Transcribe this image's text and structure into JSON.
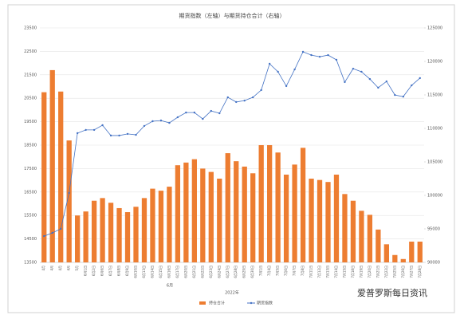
{
  "chart_data": {
    "type": "bar_line",
    "title": "期货指数（左轴）与期货持仓合计（右轴）",
    "x_annotation": "2022年",
    "group_label": "6月",
    "watermark": "爱普罗斯每日资讯",
    "categories": [
      "4月",
      "4月",
      "4月",
      "4月",
      "5月",
      "6月1日",
      "6月2日",
      "6月6日",
      "6月7日",
      "6月8日",
      "6月9日",
      "6月10日",
      "6月13日",
      "6月14日",
      "6月15日",
      "6月16日",
      "6月17日",
      "6月20日",
      "6月21日",
      "6月22日",
      "6月23日",
      "6月24日",
      "6月27日",
      "6月28日",
      "6月29日",
      "6月30日",
      "7月1日",
      "7月4日",
      "7月5日",
      "7月6日",
      "7月7日",
      "7月8日",
      "7月11日",
      "7月12日",
      "7月13日",
      "7月14日",
      "7月15日",
      "7月18日",
      "7月19日",
      "7月20日",
      "7月21日",
      "7月22日",
      "7月25日",
      "7月26日",
      "7月27日",
      "7月28日"
    ],
    "series": [
      {
        "name": "持仓合计",
        "kind": "bar",
        "axis": "y2",
        "color": "#ed7d31",
        "values": [
          115400,
          118700,
          115500,
          108200,
          97000,
          97600,
          99200,
          99600,
          98900,
          98100,
          97500,
          98300,
          99600,
          101000,
          100700,
          101300,
          104500,
          104900,
          105400,
          104000,
          103500,
          102500,
          106300,
          105100,
          104300,
          103300,
          107500,
          107500,
          106400,
          103100,
          104600,
          107100,
          102500,
          102300,
          102000,
          103100,
          100200,
          99200,
          97700,
          97100,
          94900,
          92700,
          91100,
          90500,
          93100,
          93100
        ]
      },
      {
        "name": "期货指数",
        "kind": "line",
        "color": "#4472c4",
        "values": [
          14620,
          14760,
          14930,
          16460,
          19010,
          19150,
          19150,
          19350,
          18910,
          18910,
          18980,
          18940,
          19320,
          19520,
          19550,
          19450,
          19690,
          19890,
          19890,
          19620,
          19960,
          19860,
          20540,
          20340,
          20400,
          20540,
          20850,
          21970,
          21630,
          21020,
          21730,
          22480,
          22340,
          22270,
          22340,
          22140,
          21190,
          21760,
          21630,
          21320,
          20950,
          21220,
          20640,
          20570,
          21050,
          21360
        ]
      }
    ],
    "ylim": [
      13500,
      23500
    ],
    "yticks": [
      13500,
      14500,
      15500,
      16500,
      17500,
      18500,
      19500,
      20500,
      21500,
      22500,
      23500
    ],
    "y2lim": [
      90000,
      125000
    ],
    "y2ticks": [
      90000,
      95000,
      100000,
      105000,
      110000,
      115000,
      120000,
      125000
    ],
    "grid": true
  }
}
